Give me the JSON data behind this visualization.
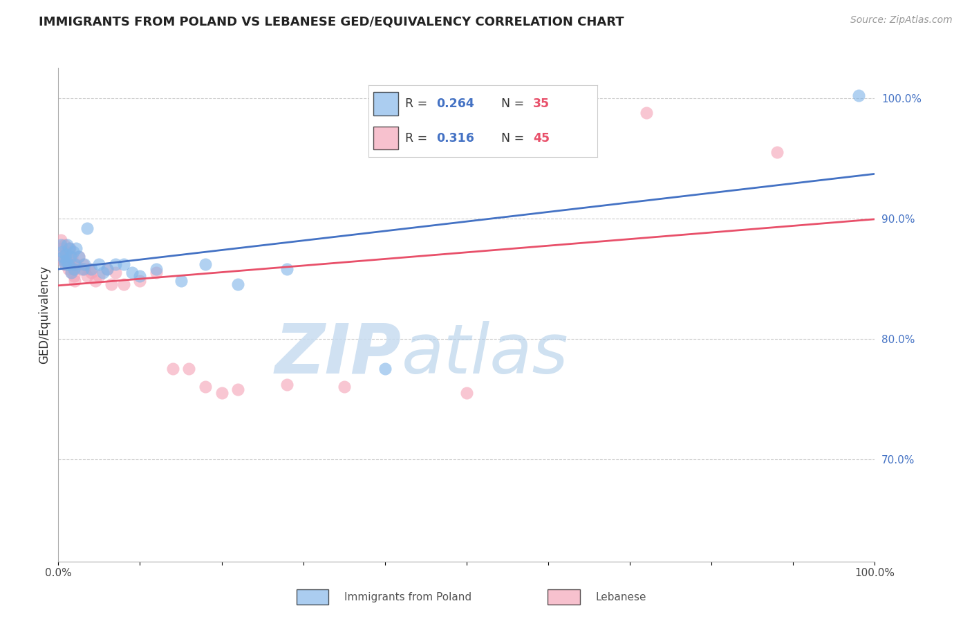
{
  "title": "IMMIGRANTS FROM POLAND VS LEBANESE GED/EQUIVALENCY CORRELATION CHART",
  "source": "Source: ZipAtlas.com",
  "ylabel": "GED/Equivalency",
  "poland_R": 0.264,
  "poland_N": 35,
  "lebanese_R": 0.316,
  "lebanese_N": 45,
  "poland_color": "#7EB3E8",
  "lebanese_color": "#F4A0B5",
  "poland_line_color": "#4472C4",
  "lebanese_line_color": "#E8506A",
  "ylim": [
    0.615,
    1.025
  ],
  "poland_scatter_x": [
    0.003,
    0.005,
    0.006,
    0.007,
    0.008,
    0.009,
    0.01,
    0.011,
    0.012,
    0.013,
    0.015,
    0.016,
    0.018,
    0.019,
    0.02,
    0.022,
    0.025,
    0.03,
    0.032,
    0.035,
    0.04,
    0.05,
    0.055,
    0.06,
    0.07,
    0.08,
    0.09,
    0.1,
    0.12,
    0.15,
    0.18,
    0.22,
    0.28,
    0.4,
    0.98
  ],
  "poland_scatter_y": [
    0.878,
    0.872,
    0.868,
    0.865,
    0.862,
    0.87,
    0.865,
    0.878,
    0.862,
    0.875,
    0.868,
    0.855,
    0.872,
    0.858,
    0.862,
    0.875,
    0.868,
    0.858,
    0.862,
    0.892,
    0.858,
    0.862,
    0.855,
    0.858,
    0.862,
    0.862,
    0.855,
    0.852,
    0.858,
    0.848,
    0.862,
    0.845,
    0.858,
    0.775,
    1.002
  ],
  "lebanese_scatter_x": [
    0.003,
    0.004,
    0.005,
    0.006,
    0.007,
    0.008,
    0.009,
    0.01,
    0.011,
    0.012,
    0.013,
    0.014,
    0.015,
    0.016,
    0.017,
    0.018,
    0.019,
    0.02,
    0.022,
    0.025,
    0.028,
    0.03,
    0.032,
    0.035,
    0.038,
    0.04,
    0.045,
    0.05,
    0.06,
    0.065,
    0.07,
    0.08,
    0.1,
    0.12,
    0.14,
    0.16,
    0.18,
    0.2,
    0.22,
    0.28,
    0.35,
    0.5,
    0.62,
    0.72,
    0.88
  ],
  "lebanese_scatter_y": [
    0.882,
    0.868,
    0.875,
    0.865,
    0.878,
    0.862,
    0.872,
    0.87,
    0.865,
    0.858,
    0.862,
    0.875,
    0.862,
    0.855,
    0.868,
    0.858,
    0.852,
    0.848,
    0.862,
    0.868,
    0.858,
    0.862,
    0.858,
    0.852,
    0.858,
    0.855,
    0.848,
    0.852,
    0.858,
    0.845,
    0.855,
    0.845,
    0.848,
    0.855,
    0.775,
    0.775,
    0.76,
    0.755,
    0.758,
    0.762,
    0.76,
    0.755,
    0.985,
    0.988,
    0.955
  ],
  "legend_R1": "0.264",
  "legend_N1": "35",
  "legend_R2": "0.316",
  "legend_N2": "45"
}
